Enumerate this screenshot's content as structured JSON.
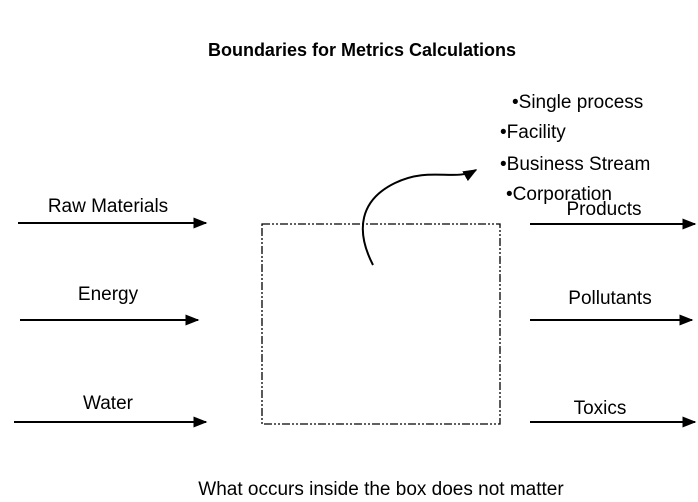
{
  "title": "Boundaries for Metrics Calculations",
  "boundary_levels": [
    "•Single process",
    "•Facility",
    "•Business Stream",
    "•Corporation"
  ],
  "inputs": [
    "Raw Materials",
    "Energy",
    "Water"
  ],
  "outputs": [
    "Products",
    "Pollutants",
    "Toxics"
  ],
  "caption": "What occurs inside the box does not matter"
}
